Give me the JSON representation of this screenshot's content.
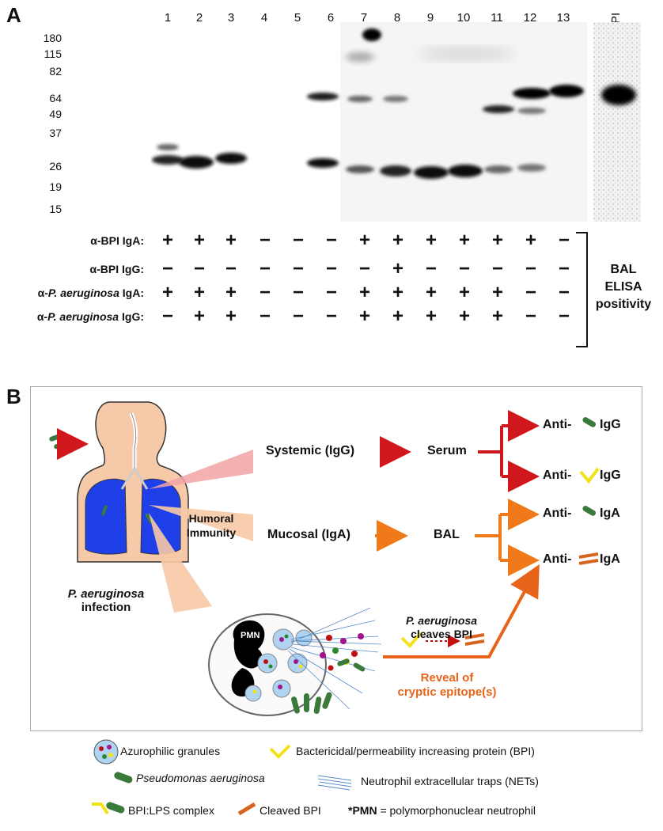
{
  "panel_a": {
    "letter": "A",
    "lanes": [
      "1",
      "2",
      "3",
      "4",
      "5",
      "6",
      "7",
      "8",
      "9",
      "10",
      "11",
      "12",
      "13"
    ],
    "bpi_lane_label": "BPI",
    "mw_markers": [
      "180",
      "115",
      "82",
      "64",
      "49",
      "37",
      "26",
      "19",
      "15"
    ],
    "rows": [
      {
        "label_prefix": "α-BPI ",
        "label_italic": "",
        "label_suffix": "IgA:",
        "signs": [
          "+",
          "+",
          "+",
          "−",
          "−",
          "−",
          "+",
          "+",
          "+",
          "+",
          "+",
          "+",
          "−"
        ]
      },
      {
        "label_prefix": "α-BPI ",
        "label_italic": "",
        "label_suffix": "IgG:",
        "signs": [
          "−",
          "−",
          "−",
          "−",
          "−",
          "−",
          "−",
          "+",
          "−",
          "−",
          "−",
          "−",
          "−"
        ]
      },
      {
        "label_prefix": "α-",
        "label_italic": "P. aeruginosa",
        "label_suffix": " IgA:",
        "signs": [
          "+",
          "+",
          "+",
          "−",
          "−",
          "−",
          "+",
          "+",
          "+",
          "+",
          "+",
          "−",
          "−"
        ]
      },
      {
        "label_prefix": "α-",
        "label_italic": "P. aeruginosa",
        "label_suffix": " IgG:",
        "signs": [
          "−",
          "+",
          "+",
          "−",
          "−",
          "−",
          "+",
          "+",
          "+",
          "+",
          "+",
          "−",
          "−"
        ]
      }
    ],
    "elisa_label": [
      "BAL",
      "ELISA",
      "positivity"
    ]
  },
  "panel_b": {
    "letter": "B",
    "infection_label": [
      "P. aeruginosa",
      "infection"
    ],
    "humoral_label": [
      "Humoral",
      "Immunity"
    ],
    "systemic_label": "Systemic (IgG)",
    "serum_label": "Serum",
    "mucosal_label": "Mucosal (IgA)",
    "bal_label": "BAL",
    "anti_prefix": "Anti-",
    "outcomes": [
      "IgG",
      "IgG",
      "IgA",
      "IgA"
    ],
    "pmn_label": "PMN",
    "cleaves_label_italic": "P. aeruginosa",
    "cleaves_label_rest": "cleaves BPI",
    "reveal_label": [
      "Reveal of",
      "cryptic epitope(s)"
    ],
    "colors": {
      "systemic": "#d0181c",
      "mucosal": "#f07a1a",
      "reveal": "#e8641a",
      "lung": "#1f3fe8",
      "body": "#f6c9a8",
      "bacteria": "#3a7a3a",
      "bpi": "#f2e21c",
      "cleaved": "#d4641e"
    }
  },
  "legend": {
    "azurophilic": "Azurophilic granules",
    "bpi": "Bactericidal/permeability increasing protein (BPI)",
    "pseudomonas": "Pseudomonas aeruginosa",
    "nets": "Neutrophil extracellular traps (NETs)",
    "complex": "BPI:LPS complex",
    "cleaved": "Cleaved BPI",
    "pmn_bold": "*PMN",
    "pmn_rest": " = polymorphonuclear neutrophil"
  }
}
